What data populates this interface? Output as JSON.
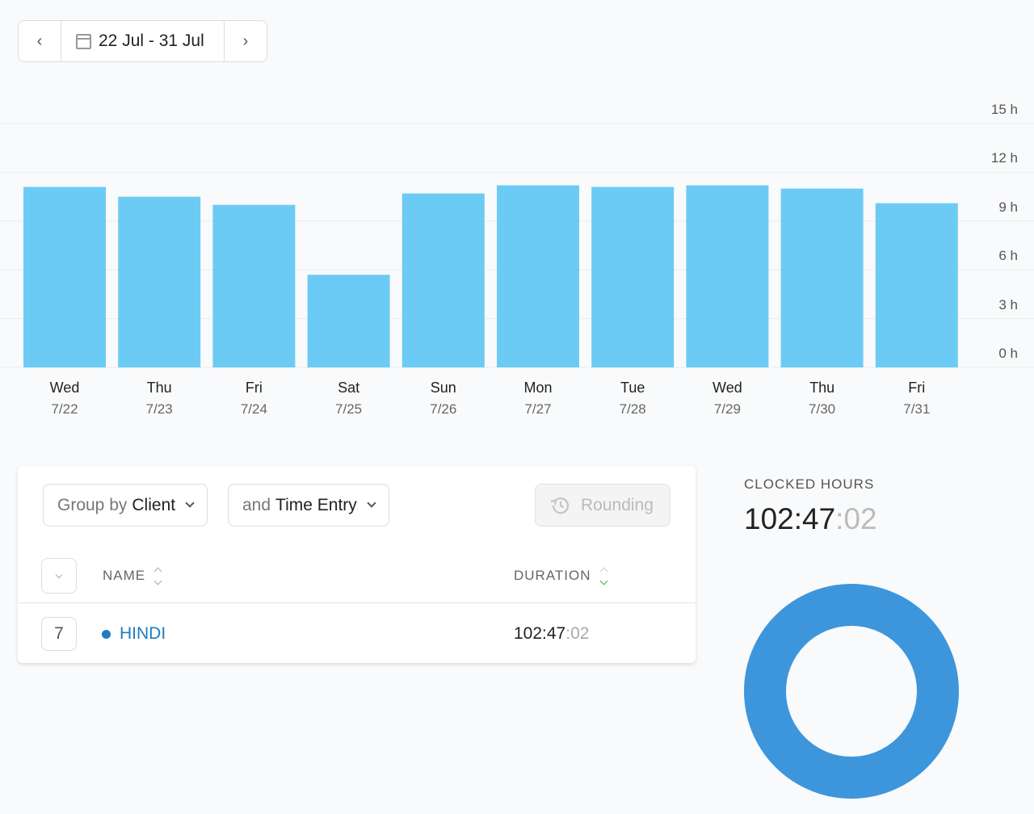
{
  "date_range": {
    "label": "22 Jul - 31 Jul"
  },
  "chart_data": {
    "type": "bar",
    "title": "",
    "xlabel": "",
    "ylabel": "",
    "ylim": [
      0,
      15
    ],
    "y_ticks": [
      {
        "value": 15,
        "label": "15 h"
      },
      {
        "value": 12,
        "label": "12 h"
      },
      {
        "value": 9,
        "label": "9 h"
      },
      {
        "value": 6,
        "label": "6 h"
      },
      {
        "value": 3,
        "label": "3 h"
      },
      {
        "value": 0,
        "label": "0 h"
      }
    ],
    "grid": true,
    "color": "#6ccbf4",
    "categories": [
      {
        "day": "Wed",
        "date": "7/22"
      },
      {
        "day": "Thu",
        "date": "7/23"
      },
      {
        "day": "Fri",
        "date": "7/24"
      },
      {
        "day": "Sat",
        "date": "7/25"
      },
      {
        "day": "Sun",
        "date": "7/26"
      },
      {
        "day": "Mon",
        "date": "7/27"
      },
      {
        "day": "Tue",
        "date": "7/28"
      },
      {
        "day": "Wed",
        "date": "7/29"
      },
      {
        "day": "Thu",
        "date": "7/30"
      },
      {
        "day": "Fri",
        "date": "7/31"
      }
    ],
    "values": [
      11.1,
      10.5,
      10.0,
      5.7,
      10.7,
      11.2,
      11.1,
      11.2,
      11.0,
      10.1
    ]
  },
  "report": {
    "group_by": {
      "prefix": "Group by",
      "value": "Client"
    },
    "then_by": {
      "prefix": "and",
      "value": "Time Entry"
    },
    "rounding_label": "Rounding",
    "columns": {
      "name": "NAME",
      "duration": "DURATION"
    },
    "rows": [
      {
        "count": "7",
        "name": "HINDI",
        "duration_main": "102:47",
        "duration_sec": ":02",
        "color": "#1e7bc4"
      }
    ]
  },
  "summary": {
    "label": "CLOCKED HOURS",
    "value_main": "102:47",
    "value_sec": ":02",
    "donut": {
      "slices": [
        {
          "name": "HINDI",
          "value": 100,
          "color": "#3d96dc"
        }
      ]
    }
  }
}
